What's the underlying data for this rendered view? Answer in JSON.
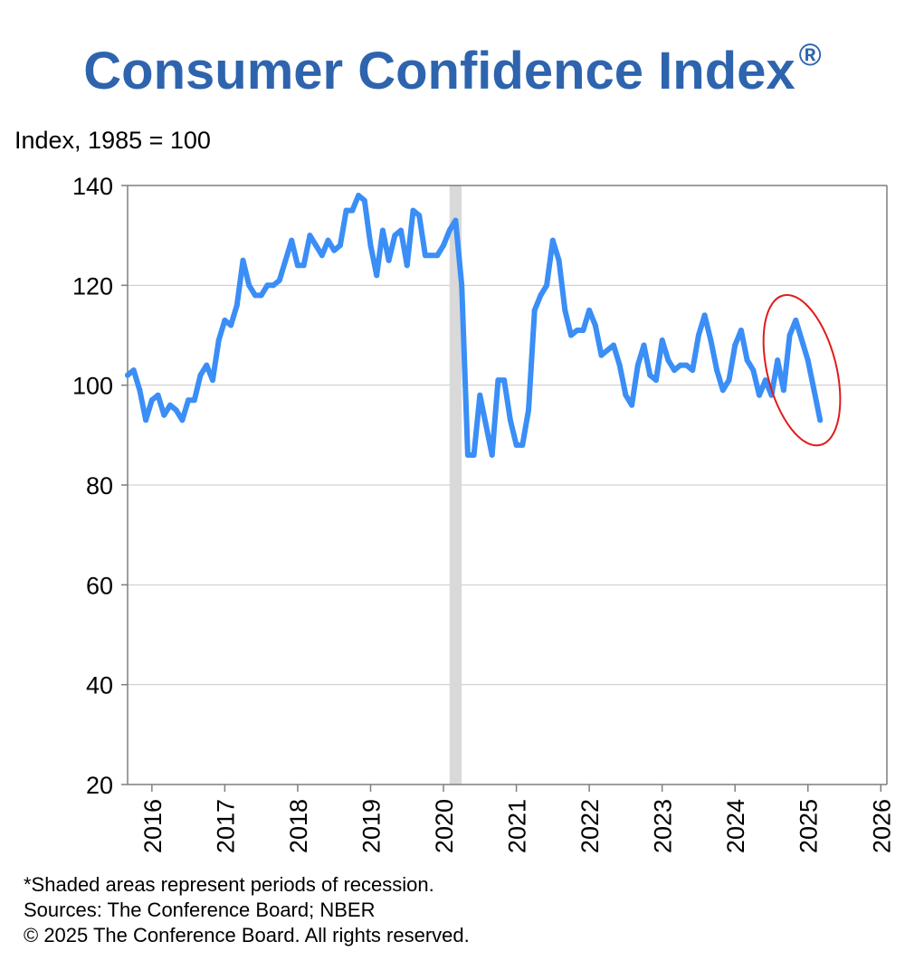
{
  "chart_data": {
    "type": "line",
    "title": "Consumer Confidence Index",
    "title_mark": "®",
    "ylabel": "Index, 1985 = 100",
    "ylim": [
      20,
      140
    ],
    "yticks": [
      20,
      40,
      60,
      80,
      100,
      120,
      140
    ],
    "xlim": [
      "2015-09",
      "2026-02"
    ],
    "xticks": [
      "2016",
      "2017",
      "2018",
      "2019",
      "2020",
      "2021",
      "2022",
      "2023",
      "2024",
      "2025",
      "2026"
    ],
    "grid": true,
    "line_color": "#3a8ef6",
    "recession": {
      "start": "2020-02",
      "end": "2020-04",
      "color": "#d9d9d9"
    },
    "highlight": {
      "start": "2024-09",
      "end": "2025-03",
      "color": "#e01b1b"
    },
    "series": [
      {
        "x": [
          "2015-09",
          "2015-10",
          "2015-11",
          "2015-12",
          "2016-01",
          "2016-02",
          "2016-03",
          "2016-04",
          "2016-05",
          "2016-06",
          "2016-07",
          "2016-08",
          "2016-09",
          "2016-10",
          "2016-11",
          "2016-12",
          "2017-01",
          "2017-02",
          "2017-03",
          "2017-04",
          "2017-05",
          "2017-06",
          "2017-07",
          "2017-08",
          "2017-09",
          "2017-10",
          "2017-11",
          "2017-12",
          "2018-01",
          "2018-02",
          "2018-03",
          "2018-04",
          "2018-05",
          "2018-06",
          "2018-07",
          "2018-08",
          "2018-09",
          "2018-10",
          "2018-11",
          "2018-12",
          "2019-01",
          "2019-02",
          "2019-03",
          "2019-04",
          "2019-05",
          "2019-06",
          "2019-07",
          "2019-08",
          "2019-09",
          "2019-10",
          "2019-11",
          "2019-12",
          "2020-01",
          "2020-02",
          "2020-03",
          "2020-04",
          "2020-05",
          "2020-06",
          "2020-07",
          "2020-08",
          "2020-09",
          "2020-10",
          "2020-11",
          "2020-12",
          "2021-01",
          "2021-02",
          "2021-03",
          "2021-04",
          "2021-05",
          "2021-06",
          "2021-07",
          "2021-08",
          "2021-09",
          "2021-10",
          "2021-11",
          "2021-12",
          "2022-01",
          "2022-02",
          "2022-03",
          "2022-04",
          "2022-05",
          "2022-06",
          "2022-07",
          "2022-08",
          "2022-09",
          "2022-10",
          "2022-11",
          "2022-12",
          "2023-01",
          "2023-02",
          "2023-03",
          "2023-04",
          "2023-05",
          "2023-06",
          "2023-07",
          "2023-08",
          "2023-09",
          "2023-10",
          "2023-11",
          "2023-12",
          "2024-01",
          "2024-02",
          "2024-03",
          "2024-04",
          "2024-05",
          "2024-06",
          "2024-07",
          "2024-08",
          "2024-09",
          "2024-10",
          "2024-11",
          "2024-12",
          "2025-01",
          "2025-02",
          "2025-03"
        ],
        "values": [
          102,
          103,
          99,
          93,
          97,
          98,
          94,
          96,
          95,
          93,
          97,
          97,
          102,
          104,
          101,
          109,
          113,
          112,
          116,
          125,
          120,
          118,
          118,
          120,
          120,
          121,
          125,
          129,
          124,
          124,
          130,
          128,
          126,
          129,
          127,
          128,
          135,
          135,
          138,
          137,
          128,
          122,
          131,
          125,
          130,
          131,
          124,
          135,
          134,
          126,
          126,
          126,
          128,
          131,
          133,
          120,
          86,
          86,
          98,
          92,
          86,
          101,
          101,
          93,
          88,
          88,
          95,
          115,
          118,
          120,
          129,
          125,
          115,
          110,
          111,
          111,
          115,
          112,
          106,
          107,
          108,
          104,
          98,
          96,
          104,
          108,
          102,
          101,
          109,
          105,
          103,
          104,
          104,
          103,
          110,
          114,
          109,
          103,
          99,
          101,
          108,
          111,
          105,
          103,
          98,
          101,
          98,
          105,
          99,
          110,
          113,
          109,
          105,
          99,
          93
        ]
      }
    ]
  },
  "footer": {
    "note": "*Shaded areas represent periods of recession.",
    "sources": "Sources: The Conference Board;  NBER",
    "copyright": "© 2025 The Conference Board. All rights reserved."
  }
}
